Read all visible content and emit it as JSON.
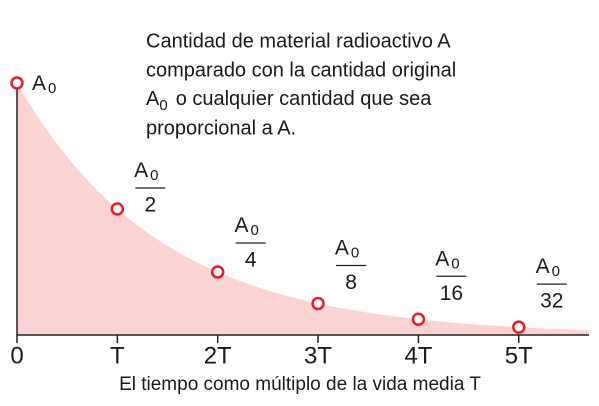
{
  "chart_data": {
    "type": "decay",
    "description": [
      "Cantidad de material radioactivo A",
      "comparado con la cantidad original",
      {
        "symbol": "A",
        "subscript": "0",
        "text": "o cualquier cantidad que sea"
      },
      "proporcional a A."
    ],
    "xlabel": "El tiempo como múltiplo de la vida media T",
    "x": [
      0,
      1,
      2,
      3,
      4,
      5
    ],
    "values": [
      1,
      0.5,
      0.25,
      0.125,
      0.0625,
      0.03125
    ],
    "point_labels": [
      {
        "symbol": "A",
        "subscript": "0"
      },
      {
        "symbol": "A",
        "subscript": "0",
        "denominator": "2"
      },
      {
        "symbol": "A",
        "subscript": "0",
        "denominator": "4"
      },
      {
        "symbol": "A",
        "subscript": "0",
        "denominator": "8"
      },
      {
        "symbol": "A",
        "subscript": "0",
        "denominator": "16"
      },
      {
        "symbol": "A",
        "subscript": "0",
        "denominator": "32"
      }
    ],
    "color": "#e31e24",
    "area_color": "#fcd2d2",
    "xlim": [
      0,
      5.7
    ],
    "ylim": [
      0,
      1
    ],
    "xticks": [
      {
        "value": 0,
        "label": "0"
      },
      {
        "value": 1,
        "label": "T"
      },
      {
        "value": 2,
        "label": "2T"
      },
      {
        "value": 3,
        "label": "3T"
      },
      {
        "value": 4,
        "label": "4T"
      },
      {
        "value": 5,
        "label": "5T"
      }
    ]
  }
}
